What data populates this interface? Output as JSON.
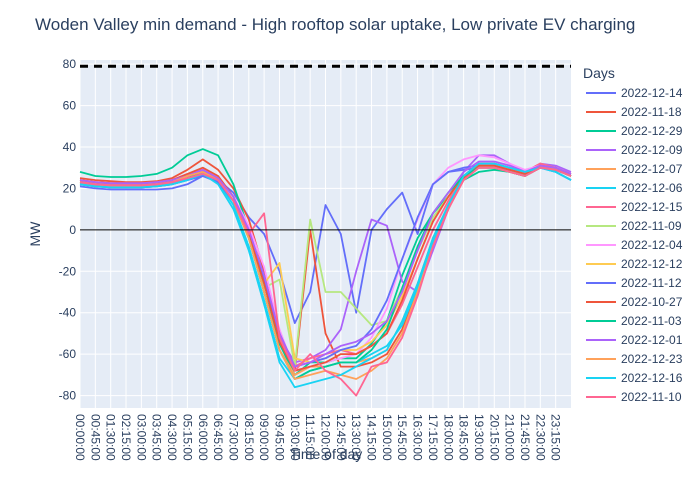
{
  "chart_data": {
    "type": "line",
    "title": "Woden Valley min demand - High rooftop solar uptake, Low private EV charging",
    "xlabel": "Time of day",
    "ylabel": "MW",
    "ylim": [
      -86,
      82
    ],
    "yticks": [
      -80,
      -60,
      -40,
      -20,
      0,
      20,
      40,
      60,
      80
    ],
    "legend_title": "Days",
    "legend_placement": "right",
    "reference_line": {
      "y": 79,
      "style": "dashed",
      "color": "#000000"
    },
    "x_tick_labels": [
      "00:00:00",
      "00:45:00",
      "01:30:00",
      "02:15:00",
      "03:00:00",
      "03:45:00",
      "04:30:00",
      "05:15:00",
      "06:00:00",
      "06:45:00",
      "07:30:00",
      "08:15:00",
      "09:00:00",
      "09:45:00",
      "10:30:00",
      "11:15:00",
      "12:00:00",
      "12:45:00",
      "13:30:00",
      "14:15:00",
      "15:00:00",
      "15:45:00",
      "16:30:00",
      "17:15:00",
      "18:00:00",
      "18:45:00",
      "19:30:00",
      "20:15:00",
      "21:00:00",
      "21:45:00",
      "22:30:00",
      "23:15:00"
    ],
    "x_hours": [
      0,
      0.75,
      1.5,
      2.25,
      3,
      3.75,
      4.5,
      5.25,
      6,
      6.75,
      7.5,
      8.25,
      9,
      9.75,
      10.5,
      11.25,
      12,
      12.75,
      13.5,
      14.25,
      15,
      15.75,
      16.5,
      17.25,
      18,
      18.75,
      19.5,
      20.25,
      21,
      21.75,
      22.5,
      23.25,
      24
    ],
    "series": [
      {
        "name": "2022-12-14",
        "color": "#636efa",
        "values": [
          21,
          20,
          19.5,
          19.5,
          19.5,
          19.5,
          20,
          22,
          26,
          24,
          18,
          6,
          -2,
          -20,
          -45,
          -30,
          12,
          -2,
          -40,
          0,
          10,
          18,
          -2,
          22,
          28,
          29,
          30,
          30,
          28,
          26,
          30,
          28,
          24
        ]
      },
      {
        "name": "2022-11-18",
        "color": "#ef553b",
        "values": [
          25,
          24,
          23.5,
          23,
          23,
          23.5,
          25,
          29,
          34,
          29,
          20,
          5,
          -20,
          -50,
          -68,
          0,
          -50,
          -66,
          -66,
          -64,
          -60,
          -48,
          -28,
          -8,
          10,
          25,
          30,
          30,
          28,
          26,
          32,
          30,
          26
        ]
      },
      {
        "name": "2022-12-29",
        "color": "#00cc96",
        "values": [
          28,
          26,
          25.5,
          25.5,
          26,
          27,
          30,
          36,
          39,
          36,
          22,
          0,
          -30,
          -55,
          -70,
          -64,
          -64,
          -62,
          -62,
          -55,
          -44,
          -22,
          -4,
          8,
          16,
          24,
          28,
          29,
          28,
          26,
          30,
          29,
          26
        ]
      },
      {
        "name": "2022-12-09",
        "color": "#ab63fa",
        "values": [
          24,
          23,
          22.5,
          22.5,
          22.5,
          23,
          24,
          27,
          29,
          24,
          14,
          -2,
          -24,
          -52,
          -64,
          -62,
          -58,
          -48,
          -20,
          5,
          2,
          -25,
          -30,
          -10,
          10,
          28,
          36,
          36,
          32,
          28,
          32,
          31,
          28
        ]
      },
      {
        "name": "2022-12-07",
        "color": "#ffa15a",
        "values": [
          23,
          22,
          21.5,
          21.5,
          21.5,
          22,
          23,
          26,
          28,
          24,
          14,
          -4,
          -30,
          -58,
          -70,
          -66,
          -66,
          -64,
          -64,
          -62,
          -58,
          -44,
          -26,
          -4,
          12,
          26,
          32,
          32,
          30,
          28,
          32,
          30,
          26
        ]
      },
      {
        "name": "2022-12-06",
        "color": "#19d3f3",
        "values": [
          22,
          21,
          20.5,
          20.5,
          20.5,
          21,
          22,
          24,
          27,
          23,
          12,
          -8,
          -34,
          -62,
          -72,
          -68,
          -66,
          -64,
          -64,
          -60,
          -56,
          -46,
          -28,
          -6,
          12,
          26,
          32,
          32,
          30,
          28,
          30,
          28,
          24
        ]
      },
      {
        "name": "2022-12-15",
        "color": "#ff6692",
        "values": [
          24,
          23,
          22.5,
          22.5,
          22.5,
          23,
          24,
          26,
          29,
          25,
          16,
          0,
          -24,
          -50,
          -66,
          -62,
          -60,
          -58,
          -60,
          -56,
          -50,
          -36,
          -18,
          0,
          14,
          26,
          32,
          32,
          30,
          28,
          32,
          30,
          26
        ]
      },
      {
        "name": "2022-11-09",
        "color": "#b6e880",
        "values": [
          22,
          21,
          20.5,
          20.5,
          20.5,
          21,
          22,
          25,
          28,
          24,
          14,
          -4,
          -28,
          -24,
          -66,
          5,
          -30,
          -30,
          -38,
          -46,
          -44,
          -28,
          -10,
          6,
          16,
          26,
          30,
          31,
          29,
          27,
          30,
          29,
          26
        ]
      },
      {
        "name": "2022-12-04",
        "color": "#ff97ff",
        "values": [
          23,
          22,
          21.5,
          21.5,
          21.5,
          22,
          23,
          25,
          27,
          24,
          16,
          2,
          -18,
          -48,
          -68,
          -66,
          -64,
          -62,
          -60,
          -52,
          -38,
          -14,
          5,
          22,
          30,
          34,
          36,
          35,
          32,
          29,
          31,
          30,
          27
        ]
      },
      {
        "name": "2022-12-12",
        "color": "#fecb52",
        "values": [
          23,
          22,
          21.5,
          21.5,
          21.5,
          22,
          23,
          26,
          28,
          24,
          14,
          -2,
          -26,
          -16,
          -62,
          -64,
          -62,
          -58,
          -58,
          -54,
          -46,
          -32,
          -14,
          4,
          16,
          26,
          31,
          31,
          29,
          27,
          30,
          29,
          26
        ]
      },
      {
        "name": "2022-11-12",
        "color": "#636efa",
        "values": [
          22,
          21,
          20.5,
          20.5,
          20.5,
          21,
          22,
          24,
          26,
          23,
          14,
          -2,
          -24,
          -50,
          -66,
          -64,
          -62,
          -58,
          -56,
          -48,
          -34,
          -14,
          6,
          22,
          28,
          30,
          31,
          31,
          29,
          27,
          30,
          29,
          26
        ]
      },
      {
        "name": "2022-10-27",
        "color": "#ef553b",
        "values": [
          24,
          23,
          22.5,
          22.5,
          22.5,
          23,
          24,
          27,
          30,
          26,
          16,
          -2,
          -26,
          -54,
          -68,
          -66,
          -64,
          -60,
          -60,
          -56,
          -50,
          -34,
          -14,
          4,
          16,
          26,
          31,
          31,
          29,
          27,
          31,
          30,
          27
        ]
      },
      {
        "name": "2022-11-03",
        "color": "#00cc96",
        "values": [
          23,
          22,
          21.5,
          21.5,
          21.5,
          22,
          23,
          25,
          28,
          24,
          14,
          -4,
          -30,
          -58,
          -72,
          -68,
          -66,
          -64,
          -64,
          -58,
          -48,
          -28,
          -8,
          8,
          18,
          26,
          30,
          30,
          28,
          26,
          30,
          29,
          26
        ]
      },
      {
        "name": "2022-12-01",
        "color": "#ab63fa",
        "values": [
          24,
          23,
          22.5,
          22.5,
          22.5,
          23,
          24,
          26,
          29,
          25,
          16,
          0,
          -22,
          -50,
          -66,
          -64,
          -60,
          -56,
          -54,
          -50,
          -44,
          -30,
          -10,
          8,
          18,
          28,
          33,
          33,
          31,
          28,
          31,
          30,
          27
        ]
      },
      {
        "name": "2022-12-23",
        "color": "#ffa15a",
        "values": [
          23,
          22,
          21.5,
          21.5,
          21.5,
          22,
          23,
          26,
          28,
          24,
          14,
          -4,
          -30,
          -58,
          -72,
          -70,
          -68,
          -70,
          -72,
          -68,
          -62,
          -50,
          -30,
          -8,
          10,
          24,
          30,
          30,
          28,
          26,
          30,
          29,
          26
        ]
      },
      {
        "name": "2022-12-16",
        "color": "#19d3f3",
        "values": [
          22,
          21,
          20.5,
          20.5,
          20.5,
          21,
          22,
          24,
          27,
          22,
          10,
          -10,
          -36,
          -64,
          -76,
          -74,
          -72,
          -70,
          -66,
          -62,
          -58,
          -44,
          -26,
          -4,
          12,
          26,
          32,
          32,
          30,
          28,
          30,
          28,
          24
        ]
      },
      {
        "name": "2022-11-10",
        "color": "#ff6692",
        "values": [
          23,
          22,
          21.5,
          21.5,
          21.5,
          22,
          23,
          25,
          27,
          24,
          14,
          -2,
          8,
          -52,
          -68,
          -60,
          -68,
          -72,
          -80,
          -66,
          -64,
          -52,
          -32,
          -8,
          10,
          24,
          30,
          30,
          28,
          26,
          30,
          29,
          26
        ]
      }
    ]
  }
}
